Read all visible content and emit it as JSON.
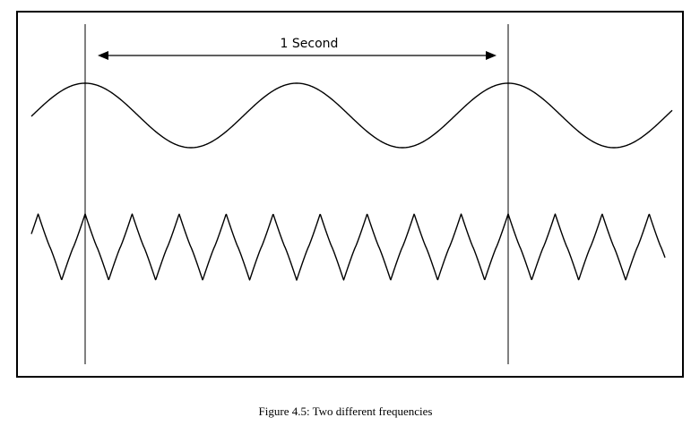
{
  "diagram": {
    "interval_label": "1 Second",
    "low_frequency_cycles_in_interval": 2,
    "high_frequency_cycles_in_interval": 9,
    "colors": {
      "stroke": "#000000",
      "background": "#ffffff"
    }
  },
  "caption": "Figure 4.5: Two different frequencies"
}
